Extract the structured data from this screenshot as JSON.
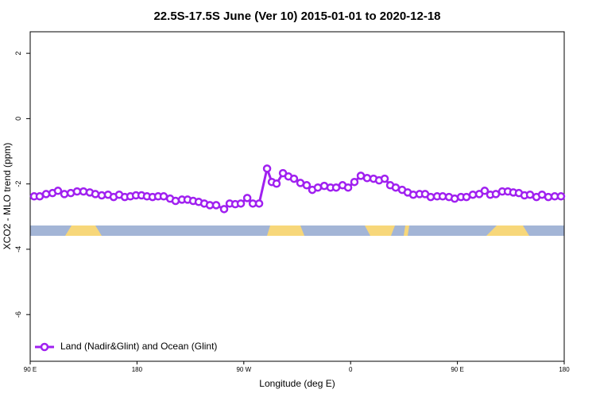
{
  "chart_data": {
    "type": "line",
    "title": "22.5S-17.5S June (Ver 10)   2015-01-01 to 2020-12-18",
    "x_label": "Longitude (deg E)",
    "y_label": "XCO2 - MLO trend (ppm)",
    "xlim": [
      90,
      540
    ],
    "ylim": [
      -7.43,
      2.66
    ],
    "xticks": [
      {
        "value": 90,
        "label": "90 E"
      },
      180,
      {
        "value": 270,
        "label": "90 W"
      },
      {
        "value": 360,
        "label": "0"
      },
      {
        "value": 450,
        "label": "90 E"
      },
      {
        "value": 540,
        "label": "180"
      }
    ],
    "yticks": [
      2,
      0,
      -2,
      -4,
      -6
    ],
    "legend": "bottom-left",
    "x": [
      93.3,
      98,
      103.4,
      108.8,
      113.4,
      118.8,
      124.2,
      129.5,
      134.9,
      140.2,
      144.9,
      150.3,
      155.6,
      160.3,
      165,
      169.7,
      174.4,
      179.1,
      183.8,
      188.4,
      193.1,
      197.8,
      202.5,
      207.9,
      212.5,
      217.9,
      222.6,
      227.3,
      232,
      236.7,
      241.4,
      246.7,
      253.4,
      258.1,
      262.8,
      267.5,
      272.9,
      277.6,
      282.9,
      289.6,
      293.6,
      297.6,
      303,
      307.6,
      312.3,
      317.7,
      323,
      327.7,
      332.4,
      337.8,
      343.1,
      347.8,
      353.2,
      357.9,
      363.2,
      368.6,
      373.9,
      379.3,
      384,
      388.7,
      393.4,
      398,
      403.4,
      408.1,
      412.8,
      418.1,
      422.8,
      427.5,
      432.9,
      437.6,
      442.9,
      447.7,
      453,
      457.6,
      463,
      468.4,
      473,
      477.7,
      482.4,
      487.8,
      492.5,
      497.1,
      501.8,
      506.5,
      511.2,
      516.6,
      521.3,
      526.6,
      532,
      537.3
    ],
    "series": [
      {
        "name": "Land (Nadir&Glint) and Ocean (Glint)",
        "color": "#a020f0",
        "values": [
          -2.38,
          -2.38,
          -2.31,
          -2.28,
          -2.21,
          -2.31,
          -2.28,
          -2.23,
          -2.23,
          -2.26,
          -2.31,
          -2.35,
          -2.33,
          -2.4,
          -2.33,
          -2.4,
          -2.38,
          -2.35,
          -2.35,
          -2.38,
          -2.4,
          -2.38,
          -2.38,
          -2.45,
          -2.52,
          -2.48,
          -2.48,
          -2.52,
          -2.55,
          -2.6,
          -2.65,
          -2.65,
          -2.77,
          -2.6,
          -2.62,
          -2.6,
          -2.43,
          -2.6,
          -2.6,
          -1.53,
          -1.94,
          -1.99,
          -1.67,
          -1.77,
          -1.84,
          -1.97,
          -2.04,
          -2.18,
          -2.11,
          -2.06,
          -2.11,
          -2.11,
          -2.04,
          -2.11,
          -1.94,
          -1.75,
          -1.82,
          -1.84,
          -1.89,
          -1.84,
          -2.04,
          -2.11,
          -2.18,
          -2.26,
          -2.33,
          -2.31,
          -2.31,
          -2.4,
          -2.38,
          -2.38,
          -2.4,
          -2.45,
          -2.4,
          -2.4,
          -2.33,
          -2.31,
          -2.21,
          -2.33,
          -2.31,
          -2.23,
          -2.23,
          -2.26,
          -2.28,
          -2.35,
          -2.33,
          -2.4,
          -2.33,
          -2.4,
          -2.38,
          -2.38
        ]
      }
    ]
  }
}
